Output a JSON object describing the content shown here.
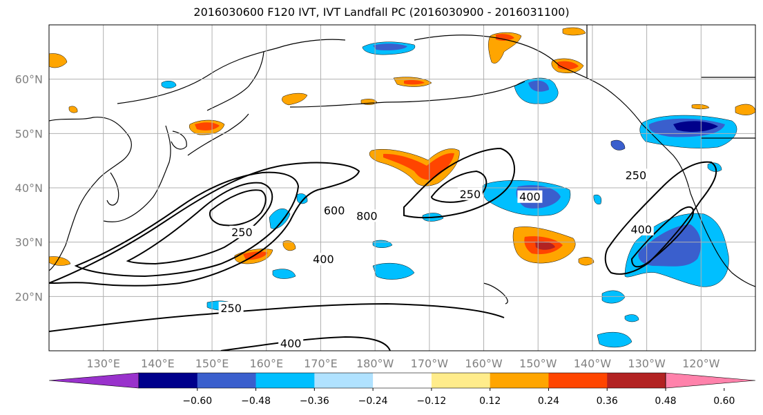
{
  "title": "2016030600 F120 IVT, IVT Landfall PC (2016030900 - 2016031100)",
  "lat_labels": [
    "60°N",
    "50°N",
    "40°N",
    "30°N",
    "20°N"
  ],
  "lon_labels": [
    "130°E",
    "140°E",
    "150°E",
    "160°E",
    "170°E",
    "180°W",
    "170°W",
    "160°W",
    "150°W",
    "140°W",
    "130°W",
    "120°W"
  ],
  "contour_labels": [
    {
      "text": "250",
      "lon": 155.5,
      "lat": 31.5
    },
    {
      "text": "600",
      "lon": 172.5,
      "lat": 35.5
    },
    {
      "text": "800",
      "lon": 178.5,
      "lat": 34.5
    },
    {
      "text": "400",
      "lon": 170.5,
      "lat": 26.5
    },
    {
      "text": "250",
      "lon": 197.5,
      "lat": 38.5
    },
    {
      "text": "400",
      "lon": 208.5,
      "lat": 38.0
    },
    {
      "text": "250",
      "lon": 228.0,
      "lat": 42.0
    },
    {
      "text": "400",
      "lon": 229.0,
      "lat": 32.0
    },
    {
      "text": "250",
      "lon": 153.5,
      "lat": 17.5
    },
    {
      "text": "400",
      "lon": 164.5,
      "lat": 11.0
    }
  ],
  "colorbar": {
    "ticks": [
      "−0.60",
      "−0.48",
      "−0.36",
      "−0.24",
      "−0.12",
      "0.12",
      "0.24",
      "0.36",
      "0.48",
      "0.60"
    ],
    "colors": [
      "#9932cc",
      "#00008b",
      "#3a5fcd",
      "#00bfff",
      "#b0e2ff",
      "#ffffff",
      "#ffec8b",
      "#ffa500",
      "#ff4500",
      "#b22222",
      "#ff82ab"
    ]
  },
  "colors": {
    "land_outline": "#000000",
    "grid": "#b0b0b0",
    "axis_label": "#808080"
  }
}
